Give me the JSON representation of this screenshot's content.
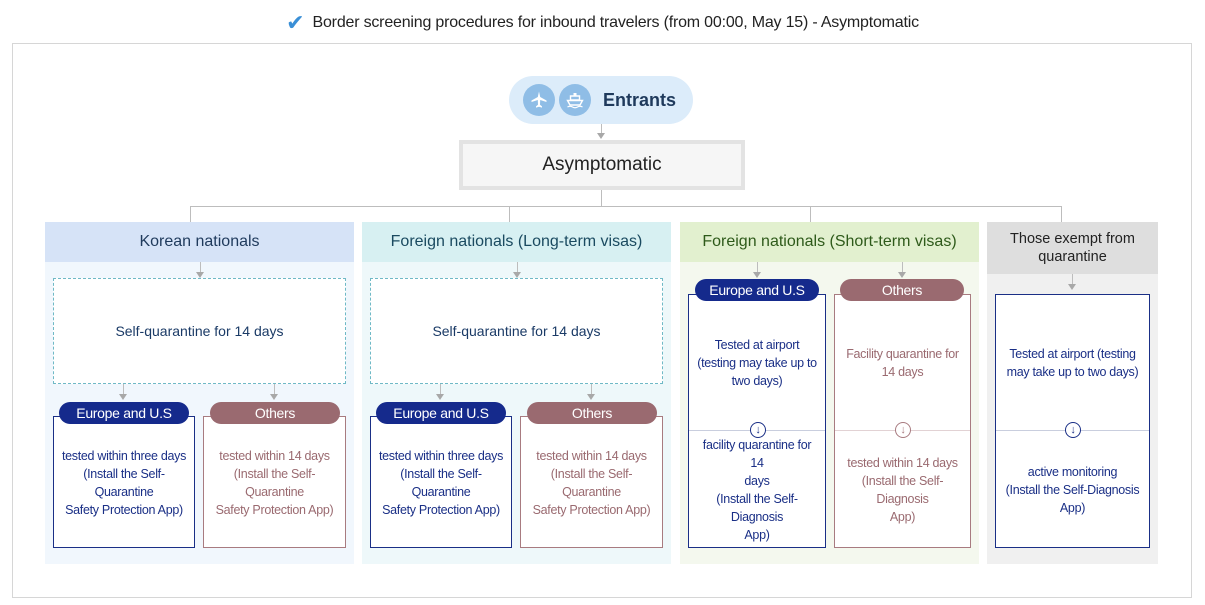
{
  "header": {
    "check_icon": "checkmark-icon",
    "title": "Border screening procedures for inbound travelers (from 00:00, May 15) - Asymptomatic"
  },
  "entrants": {
    "icons": [
      "airplane-icon",
      "ship-icon"
    ],
    "label": "Entrants"
  },
  "asymptomatic": {
    "label": "Asymptomatic"
  },
  "columns": {
    "korean": {
      "title": "Korean nationals",
      "self_quarantine": "Self-quarantine for 14 days",
      "eu_label": "Europe and U.S",
      "others_label": "Others",
      "eu_text": [
        "tested within three days",
        "(Install the Self-Quarantine",
        "Safety Protection App)"
      ],
      "others_text": [
        "tested within 14 days",
        "(Install the Self-Quarantine",
        "Safety Protection App)"
      ]
    },
    "long_term": {
      "title": "Foreign nationals (Long-term visas)",
      "self_quarantine": "Self-quarantine for 14 days",
      "eu_label": "Europe and U.S",
      "others_label": "Others",
      "eu_text": [
        "tested within three days",
        "(Install the Self-Quarantine",
        "Safety Protection App)"
      ],
      "others_text": [
        "tested within 14 days",
        "(Install the Self-Quarantine",
        "Safety Protection App)"
      ]
    },
    "short_term": {
      "title": "Foreign nationals (Short-term visas)",
      "eu_label": "Europe and U.S",
      "others_label": "Others",
      "eu_top": [
        "Tested at airport",
        "(testing may take up to",
        "two days)"
      ],
      "eu_bottom": [
        "facility quarantine for 14",
        "days",
        "(Install the Self-Diagnosis",
        "App)"
      ],
      "others_top": [
        "Facility quarantine for",
        "14 days"
      ],
      "others_bottom": [
        "tested within 14 days",
        "(Install the Self-Diagnosis",
        "App)"
      ]
    },
    "exempt": {
      "title": [
        "Those exempt from",
        "quarantine"
      ],
      "top": [
        "Tested at airport (testing",
        "may take up to two days)"
      ],
      "bottom": [
        "active monitoring",
        "(Install the Self-Diagnosis App)"
      ]
    }
  },
  "colors": {
    "korean_bg": "#f1f7fd",
    "korean_head": "#d6e3f7",
    "long_bg": "#eef8fa",
    "long_head": "#d7f0f2",
    "short_bg": "#f4f8ee",
    "short_head": "#e2f0cf",
    "exempt_bg": "#f0f0f0",
    "exempt_head": "#dedede",
    "navy": "#152a8c",
    "rose": "#9a6a70"
  }
}
